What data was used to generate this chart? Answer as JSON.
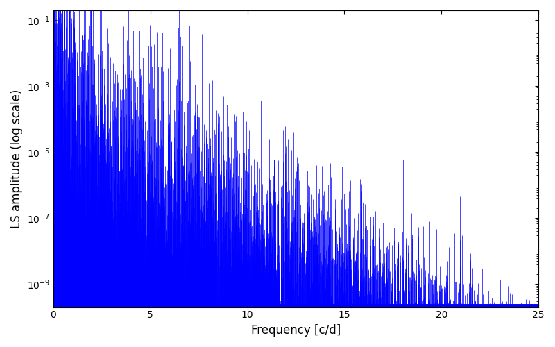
{
  "xlabel": "Frequency [c/d]",
  "ylabel": "LS amplitude (log scale)",
  "line_color": "#0000FF",
  "xlim": [
    0,
    25
  ],
  "ylim_log_min": -9.7,
  "ylim_log_max": -0.7,
  "yticks": [
    1e-09,
    1e-07,
    1e-05,
    0.001,
    0.1
  ],
  "xticks": [
    0,
    5,
    10,
    15,
    20,
    25
  ],
  "background_color": "#ffffff",
  "figsize": [
    8.0,
    5.0
  ],
  "dpi": 100,
  "seed": 12345,
  "n_points": 5000,
  "freq_max": 25.0,
  "linewidth": 0.5,
  "envelope_decay": 3.5,
  "envelope_base": 1e-05,
  "noise_std_log": 1.8,
  "noise_floor_log": -7.0,
  "low_freq_extra_boost": 3.0,
  "low_freq_decay": 0.8
}
